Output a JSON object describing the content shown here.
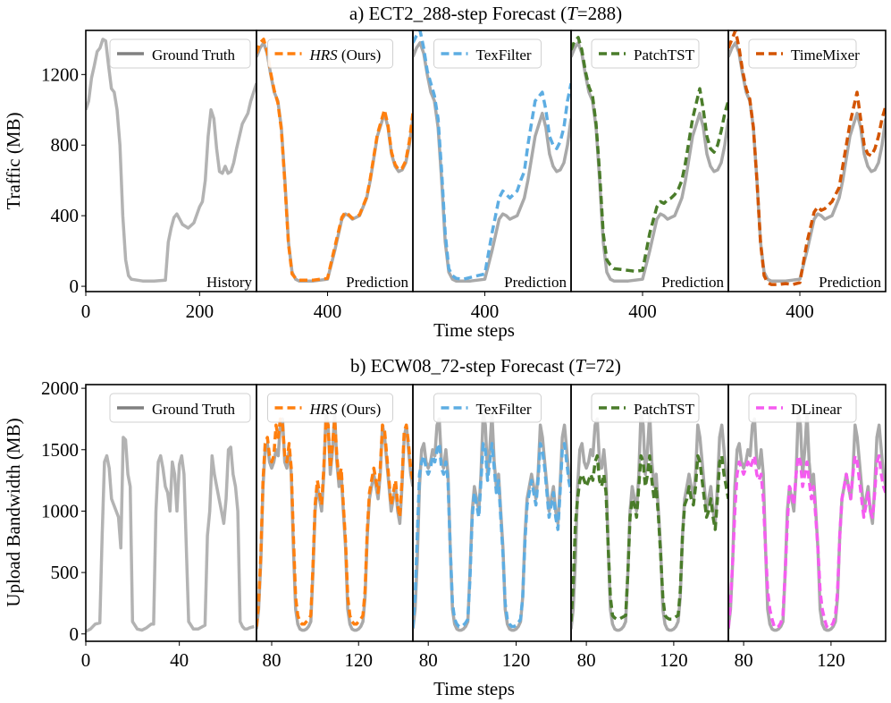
{
  "figure": {
    "xlabel": "Time steps",
    "history_label": "History",
    "prediction_label": "Prediction"
  },
  "colors": {
    "history": "#b3b3b3",
    "ground_truth": "#a9a9a9",
    "ground_truth_legend": "#808080",
    "HRS": "#ff7f0e",
    "TexFilter": "#5dade2",
    "PatchTST": "#4a7c2a",
    "TimeMixer": "#d35400",
    "DLinear": "#f55cf0"
  },
  "chart_data": [
    {
      "type": "line",
      "title": "a) ECT2_288-step Forecast (T=288)",
      "title_prefix": "a) ECT2_288-step Forecast (",
      "title_T": "T",
      "title_suffix": "=288)",
      "ylabel": "Traffic (MB)",
      "xlabel": "Time steps",
      "ylim": [
        -30,
        1450
      ],
      "yticks": [
        0,
        400,
        800,
        1200
      ],
      "history_xlim": [
        0,
        300
      ],
      "history_xticks": [
        0,
        200
      ],
      "prediction_xlim": [
        300,
        520
      ],
      "prediction_xticks": [
        400
      ],
      "history": {
        "x": [
          0,
          5,
          10,
          15,
          20,
          25,
          30,
          35,
          40,
          45,
          50,
          55,
          60,
          65,
          70,
          75,
          80,
          90,
          100,
          120,
          140,
          145,
          150,
          155,
          160,
          165,
          170,
          180,
          190,
          200,
          205,
          210,
          215,
          220,
          225,
          230,
          235,
          240,
          245,
          250,
          255,
          260,
          265,
          270,
          275,
          280,
          285,
          290,
          295,
          300
        ],
        "values": [
          1000,
          1050,
          1180,
          1250,
          1330,
          1350,
          1400,
          1390,
          1250,
          1120,
          1100,
          1000,
          800,
          400,
          150,
          60,
          40,
          35,
          30,
          30,
          35,
          250,
          330,
          390,
          410,
          380,
          350,
          330,
          360,
          450,
          480,
          600,
          850,
          1000,
          950,
          780,
          650,
          640,
          680,
          640,
          650,
          700,
          780,
          850,
          920,
          950,
          980,
          1050,
          1100,
          1150
        ]
      },
      "ground_truth": {
        "x": [
          300,
          305,
          310,
          315,
          320,
          325,
          330,
          335,
          340,
          345,
          350,
          355,
          360,
          370,
          380,
          390,
          400,
          410,
          420,
          425,
          430,
          435,
          440,
          445,
          450,
          455,
          460,
          470,
          480,
          485,
          490,
          495,
          500,
          505,
          510,
          515,
          520
        ],
        "values": [
          1300,
          1350,
          1380,
          1320,
          1200,
          1100,
          1050,
          900,
          600,
          250,
          80,
          40,
          30,
          30,
          30,
          35,
          40,
          200,
          380,
          410,
          400,
          380,
          390,
          400,
          450,
          500,
          600,
          850,
          980,
          900,
          750,
          680,
          650,
          660,
          700,
          800,
          950
        ]
      },
      "legend": [
        "Ground Truth",
        "HRS (Ours)",
        "TexFilter",
        "PatchTST",
        "TimeMixer"
      ],
      "models": [
        {
          "name": "HRS",
          "legend_prefix": "",
          "legend_italic": "HRS",
          "legend_suffix": " (Ours)",
          "color_key": "HRS",
          "values": [
            1320,
            1380,
            1400,
            1330,
            1210,
            1110,
            1040,
            890,
            580,
            240,
            70,
            45,
            35,
            35,
            35,
            40,
            45,
            220,
            390,
            420,
            405,
            385,
            395,
            405,
            455,
            505,
            610,
            860,
            1000,
            910,
            760,
            690,
            660,
            670,
            710,
            820,
            980
          ]
        },
        {
          "name": "TexFilter",
          "legend_prefix": "",
          "legend_italic": "",
          "legend_suffix": "TexFilter",
          "color_key": "TexFilter",
          "values": [
            1380,
            1420,
            1450,
            1350,
            1220,
            1150,
            1080,
            950,
            650,
            300,
            100,
            60,
            45,
            40,
            50,
            60,
            70,
            300,
            500,
            540,
            520,
            500,
            520,
            540,
            600,
            650,
            800,
            1050,
            1100,
            1000,
            850,
            800,
            780,
            820,
            900,
            1050,
            1150
          ]
        },
        {
          "name": "PatchTST",
          "legend_prefix": "",
          "legend_italic": "",
          "legend_suffix": "PatchTST",
          "color_key": "PatchTST",
          "values": [
            1340,
            1390,
            1410,
            1340,
            1220,
            1130,
            1080,
            920,
            640,
            300,
            150,
            120,
            100,
            95,
            90,
            85,
            90,
            300,
            450,
            480,
            470,
            490,
            500,
            520,
            550,
            600,
            700,
            950,
            1120,
            1000,
            850,
            780,
            760,
            800,
            880,
            980,
            1050
          ]
        },
        {
          "name": "TimeMixer",
          "legend_prefix": "",
          "legend_italic": "",
          "legend_suffix": "TimeMixer",
          "color_key": "TimeMixer",
          "values": [
            1350,
            1400,
            1450,
            1350,
            1220,
            1120,
            1060,
            900,
            600,
            250,
            60,
            20,
            10,
            10,
            15,
            10,
            20,
            250,
            420,
            450,
            430,
            440,
            460,
            480,
            520,
            560,
            680,
            920,
            1100,
            950,
            800,
            750,
            740,
            780,
            850,
            950,
            1020
          ]
        }
      ]
    },
    {
      "type": "line",
      "title": "b) ECW08_72-step Forecast (T=72)",
      "title_prefix": "b) ECW08_72-step Forecast (",
      "title_T": "T",
      "title_suffix": "=72)",
      "ylabel": "Upload Bandwidth (MB)",
      "xlabel": "Time steps",
      "ylim": [
        -60,
        2030
      ],
      "yticks": [
        0,
        500,
        1000,
        1500,
        2000
      ],
      "history_xlim": [
        0,
        73
      ],
      "history_xticks": [
        0,
        40
      ],
      "prediction_xlim": [
        73,
        145
      ],
      "prediction_xticks": [
        80,
        120
      ],
      "history": {
        "x": [
          0,
          2,
          4,
          6,
          7,
          8,
          9,
          10,
          11,
          12,
          13,
          14,
          15,
          16,
          17,
          18,
          19,
          20,
          22,
          24,
          26,
          28,
          29,
          30,
          31,
          32,
          33,
          34,
          35,
          36,
          37,
          38,
          39,
          40,
          41,
          42,
          44,
          46,
          48,
          50,
          51,
          52,
          53,
          54,
          55,
          56,
          57,
          58,
          59,
          60,
          61,
          62,
          63,
          64,
          65,
          66,
          67,
          68,
          69,
          70,
          72
        ],
        "values": [
          20,
          40,
          80,
          90,
          800,
          1400,
          1450,
          1350,
          1100,
          1050,
          1000,
          950,
          700,
          1600,
          1580,
          1300,
          1200,
          100,
          40,
          30,
          50,
          80,
          80,
          1000,
          1400,
          1450,
          1350,
          1200,
          1150,
          1000,
          1400,
          1300,
          1000,
          1380,
          1450,
          1300,
          100,
          40,
          40,
          60,
          70,
          800,
          1000,
          1450,
          1300,
          1200,
          1100,
          1000,
          900,
          1100,
          1500,
          1520,
          1300,
          1200,
          1000,
          100,
          60,
          40,
          40,
          50,
          60
        ]
      },
      "ground_truth": {
        "x": [
          73,
          74,
          75,
          76,
          77,
          78,
          79,
          80,
          81,
          82,
          83,
          84,
          85,
          86,
          87,
          88,
          89,
          90,
          91,
          92,
          93,
          94,
          95,
          96,
          97,
          98,
          99,
          100,
          101,
          102,
          103,
          104,
          105,
          106,
          107,
          108,
          109,
          110,
          111,
          112,
          113,
          114,
          115,
          116,
          117,
          118,
          119,
          120,
          121,
          122,
          123,
          124,
          125,
          126,
          127,
          128,
          129,
          130,
          131,
          132,
          133,
          134,
          135,
          136,
          137,
          138,
          139,
          140,
          141,
          142,
          143,
          144,
          145
        ],
        "values": [
          40,
          200,
          600,
          1200,
          1500,
          1550,
          1400,
          1350,
          1400,
          1500,
          1450,
          1700,
          1750,
          1400,
          1350,
          1500,
          1300,
          700,
          200,
          80,
          40,
          30,
          30,
          40,
          60,
          100,
          500,
          1000,
          1200,
          1100,
          1000,
          1300,
          1800,
          1700,
          1300,
          1500,
          1800,
          1400,
          1200,
          1300,
          1000,
          700,
          200,
          80,
          40,
          30,
          30,
          40,
          60,
          100,
          300,
          800,
          1100,
          1200,
          1300,
          1200,
          1100,
          1300,
          1700,
          1600,
          1400,
          1200,
          1000,
          1100,
          1200,
          1000,
          900,
          1200,
          1600,
          1700,
          1500,
          1300,
          1200
        ]
      },
      "legend": [
        "Ground Truth",
        "HRS (Ours)",
        "TexFilter",
        "PatchTST",
        "DLinear"
      ],
      "models": [
        {
          "name": "HRS",
          "legend_prefix": "",
          "legend_italic": "HRS",
          "legend_suffix": " (Ours)",
          "color_key": "HRS",
          "values": [
            60,
            250,
            650,
            1250,
            1550,
            1600,
            1450,
            1400,
            1450,
            1700,
            1600,
            1750,
            1700,
            1450,
            1400,
            1550,
            1350,
            800,
            300,
            150,
            100,
            80,
            80,
            100,
            120,
            150,
            550,
            1050,
            1250,
            1150,
            1050,
            1350,
            1750,
            1700,
            1350,
            1550,
            1750,
            1450,
            1250,
            1350,
            1050,
            750,
            300,
            150,
            100,
            80,
            80,
            100,
            120,
            150,
            350,
            850,
            1150,
            1250,
            1350,
            1250,
            1150,
            1350,
            1700,
            1650,
            1450,
            1250,
            1050,
            1150,
            1250,
            1050,
            950,
            1250,
            1650,
            1700,
            1550,
            1350,
            1250
          ]
        },
        {
          "name": "TexFilter",
          "legend_prefix": "",
          "legend_italic": "",
          "legend_suffix": "TexFilter",
          "color_key": "TexFilter",
          "values": [
            50,
            300,
            800,
            1300,
            1400,
            1450,
            1350,
            1300,
            1350,
            1450,
            1400,
            1500,
            1550,
            1350,
            1300,
            1400,
            1250,
            700,
            250,
            120,
            80,
            60,
            60,
            70,
            90,
            120,
            450,
            950,
            1150,
            1050,
            950,
            1250,
            1550,
            1500,
            1250,
            1400,
            1550,
            1350,
            1150,
            1250,
            950,
            650,
            250,
            120,
            80,
            60,
            60,
            70,
            90,
            120,
            300,
            750,
            1050,
            1150,
            1250,
            1150,
            1050,
            1250,
            1550,
            1500,
            1350,
            1150,
            950,
            1050,
            1150,
            950,
            850,
            1150,
            1500,
            1550,
            1400,
            1250,
            1150
          ]
        },
        {
          "name": "PatchTST",
          "legend_prefix": "",
          "legend_italic": "",
          "legend_suffix": "PatchTST",
          "color_key": "PatchTST",
          "values": [
            100,
            400,
            900,
            1100,
            1250,
            1300,
            1250,
            1200,
            1250,
            1300,
            1250,
            1400,
            1450,
            1250,
            1200,
            1300,
            1150,
            700,
            300,
            150,
            130,
            120,
            120,
            130,
            140,
            150,
            500,
            950,
            1100,
            1050,
            950,
            1200,
            1450,
            1400,
            1200,
            1300,
            1450,
            1250,
            1100,
            1200,
            950,
            650,
            300,
            150,
            130,
            120,
            120,
            130,
            140,
            150,
            350,
            800,
            1050,
            1100,
            1200,
            1100,
            1050,
            1200,
            1450,
            1400,
            1250,
            1100,
            950,
            1000,
            1100,
            950,
            850,
            1100,
            1400,
            1450,
            1300,
            1200,
            1100
          ]
        },
        {
          "name": "DLinear",
          "legend_prefix": "",
          "legend_italic": "",
          "legend_suffix": "DLinear",
          "color_key": "DLinear",
          "values": [
            50,
            250,
            600,
            1000,
            1300,
            1400,
            1350,
            1300,
            1350,
            1400,
            1350,
            1400,
            1450,
            1300,
            1250,
            1300,
            1100,
            700,
            350,
            200,
            120,
            60,
            50,
            60,
            90,
            150,
            500,
            900,
            1200,
            1150,
            1050,
            1300,
            1450,
            1400,
            1200,
            1300,
            1400,
            1250,
            1100,
            1200,
            950,
            700,
            350,
            200,
            120,
            60,
            50,
            60,
            90,
            150,
            350,
            800,
            1100,
            1200,
            1300,
            1200,
            1100,
            1300,
            1450,
            1400,
            1250,
            1100,
            950,
            1050,
            1150,
            1000,
            950,
            1150,
            1400,
            1450,
            1300,
            1200,
            1150
          ]
        }
      ]
    }
  ]
}
